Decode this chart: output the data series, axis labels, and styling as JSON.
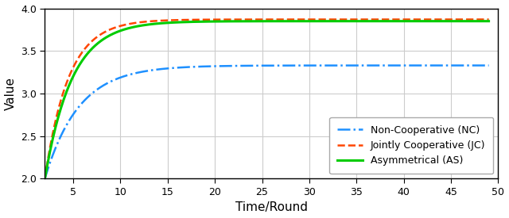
{
  "title": "",
  "xlabel": "Time/Round",
  "ylabel": "Value",
  "xlim": [
    2,
    49
  ],
  "ylim": [
    2,
    4
  ],
  "xticks": [
    5,
    10,
    15,
    20,
    25,
    30,
    35,
    40,
    45,
    50
  ],
  "yticks": [
    2,
    2.5,
    3,
    3.5,
    4
  ],
  "nc_color": "#1E90FF",
  "jc_color": "#FF4500",
  "as_color": "#00CC00",
  "nc_label": "Non-Cooperative (NC)",
  "jc_label": "Jointly Cooperative (JC)",
  "as_label": "Asymmetrical (AS)",
  "nc_asymptote": 3.33,
  "jc_asymptote": 3.87,
  "as_asymptote": 3.85,
  "x_start": 2,
  "x_end": 49,
  "nc_rate": 0.28,
  "jc_rate": 0.4,
  "as_rate": 0.35,
  "background_color": "#ffffff",
  "grid_color": "#cccccc"
}
